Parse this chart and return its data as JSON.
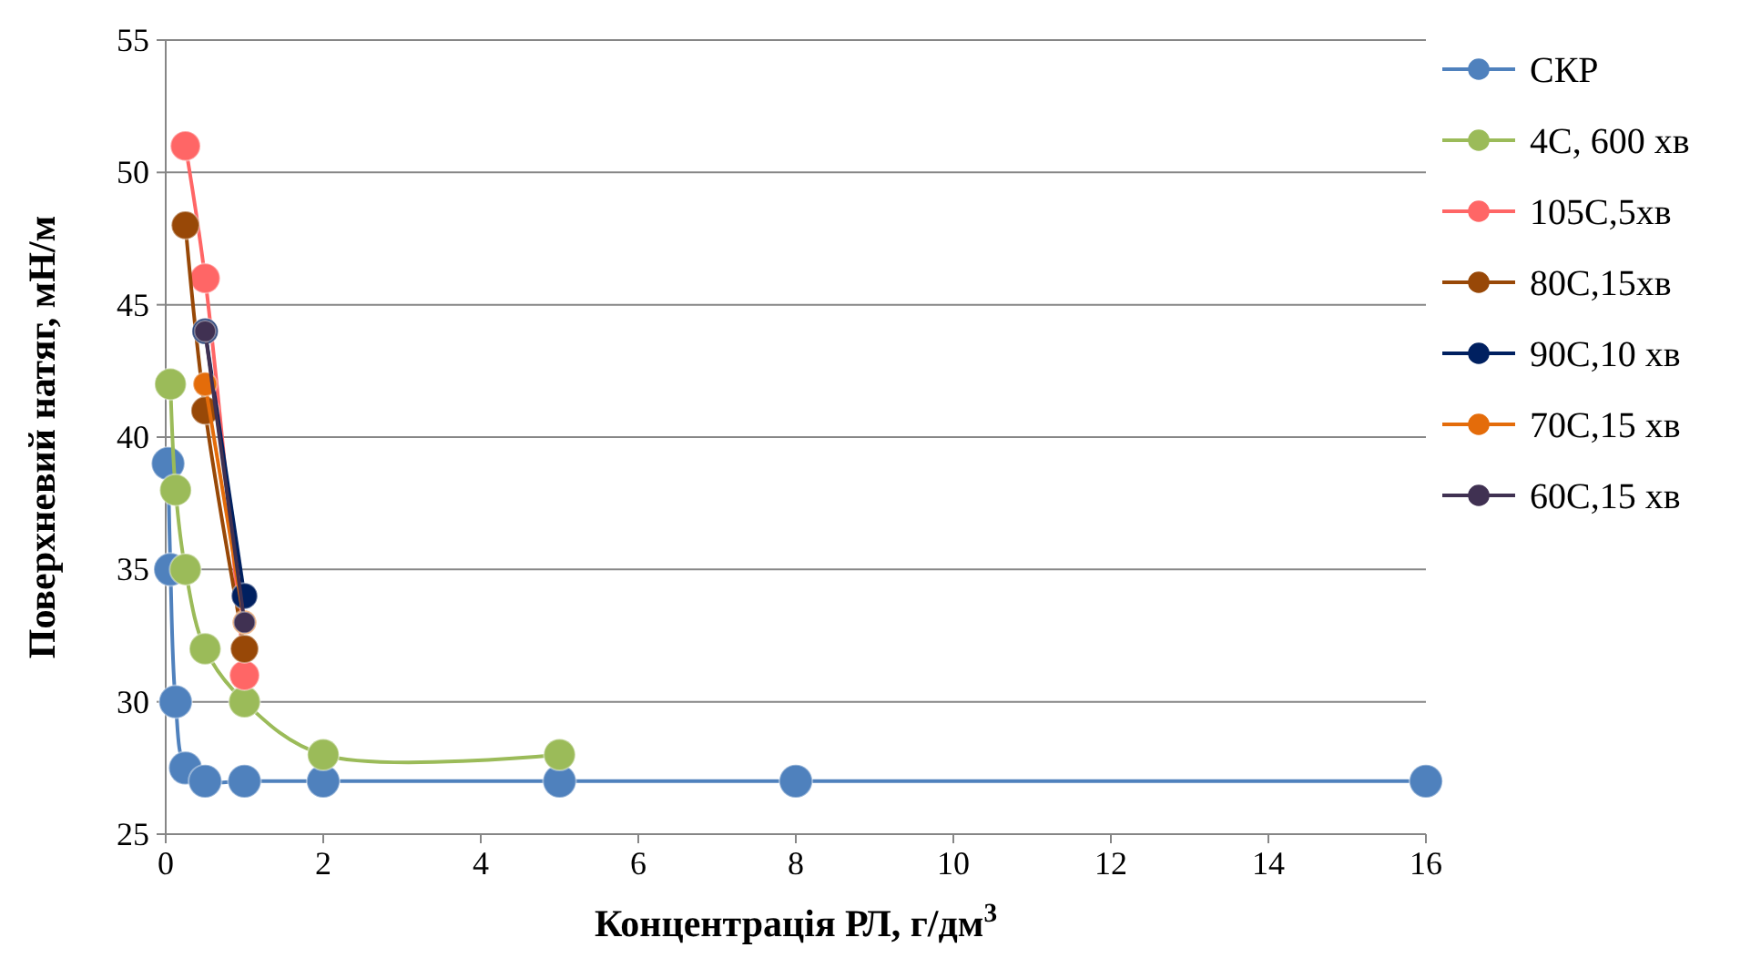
{
  "chart_data": {
    "type": "line",
    "xlabel": "Концентрація РЛ, г/дм$^{3}$",
    "ylabel": "Поверхневий натяг, мН/м",
    "xlim": [
      0,
      16
    ],
    "xticks": [
      0,
      2,
      4,
      6,
      8,
      10,
      12,
      14,
      16
    ],
    "ylim": [
      25,
      55
    ],
    "yticks": [
      25,
      30,
      35,
      40,
      45,
      50,
      55
    ],
    "grid": "y",
    "legend": "right",
    "marker": "circle",
    "series": [
      {
        "name": "СКР",
        "color": "#4f81bd",
        "x": [
          0.03,
          0.06,
          0.125,
          0.25,
          0.5,
          1,
          2,
          5,
          8,
          16
        ],
        "values": [
          39,
          35,
          30,
          27.5,
          27,
          27,
          27,
          27,
          27,
          27
        ]
      },
      {
        "name": "4С, 600 хв",
        "color": "#9bbb59",
        "x": [
          0.06,
          0.125,
          0.25,
          0.5,
          1,
          2,
          5
        ],
        "values": [
          42,
          38,
          35,
          32,
          30,
          28,
          28
        ]
      },
      {
        "name": "105С,5хв",
        "color": "#ff6666",
        "x": [
          0.25,
          0.5,
          1
        ],
        "values": [
          51,
          46,
          31
        ]
      },
      {
        "name": "80С,15хв",
        "color": "#984807",
        "x": [
          0.25,
          0.5,
          1
        ],
        "values": [
          48,
          41,
          32
        ]
      },
      {
        "name": "90С,10 хв",
        "color": "#002060",
        "x": [
          0.5,
          1
        ],
        "values": [
          44,
          34
        ]
      },
      {
        "name": "70С,15 хв",
        "color": "#e46c0a",
        "x": [
          0.5,
          1
        ],
        "values": [
          42,
          33
        ]
      },
      {
        "name": "60С,15 хв",
        "color": "#403152",
        "x": [
          0.5,
          1
        ],
        "values": [
          44,
          33
        ]
      }
    ]
  }
}
